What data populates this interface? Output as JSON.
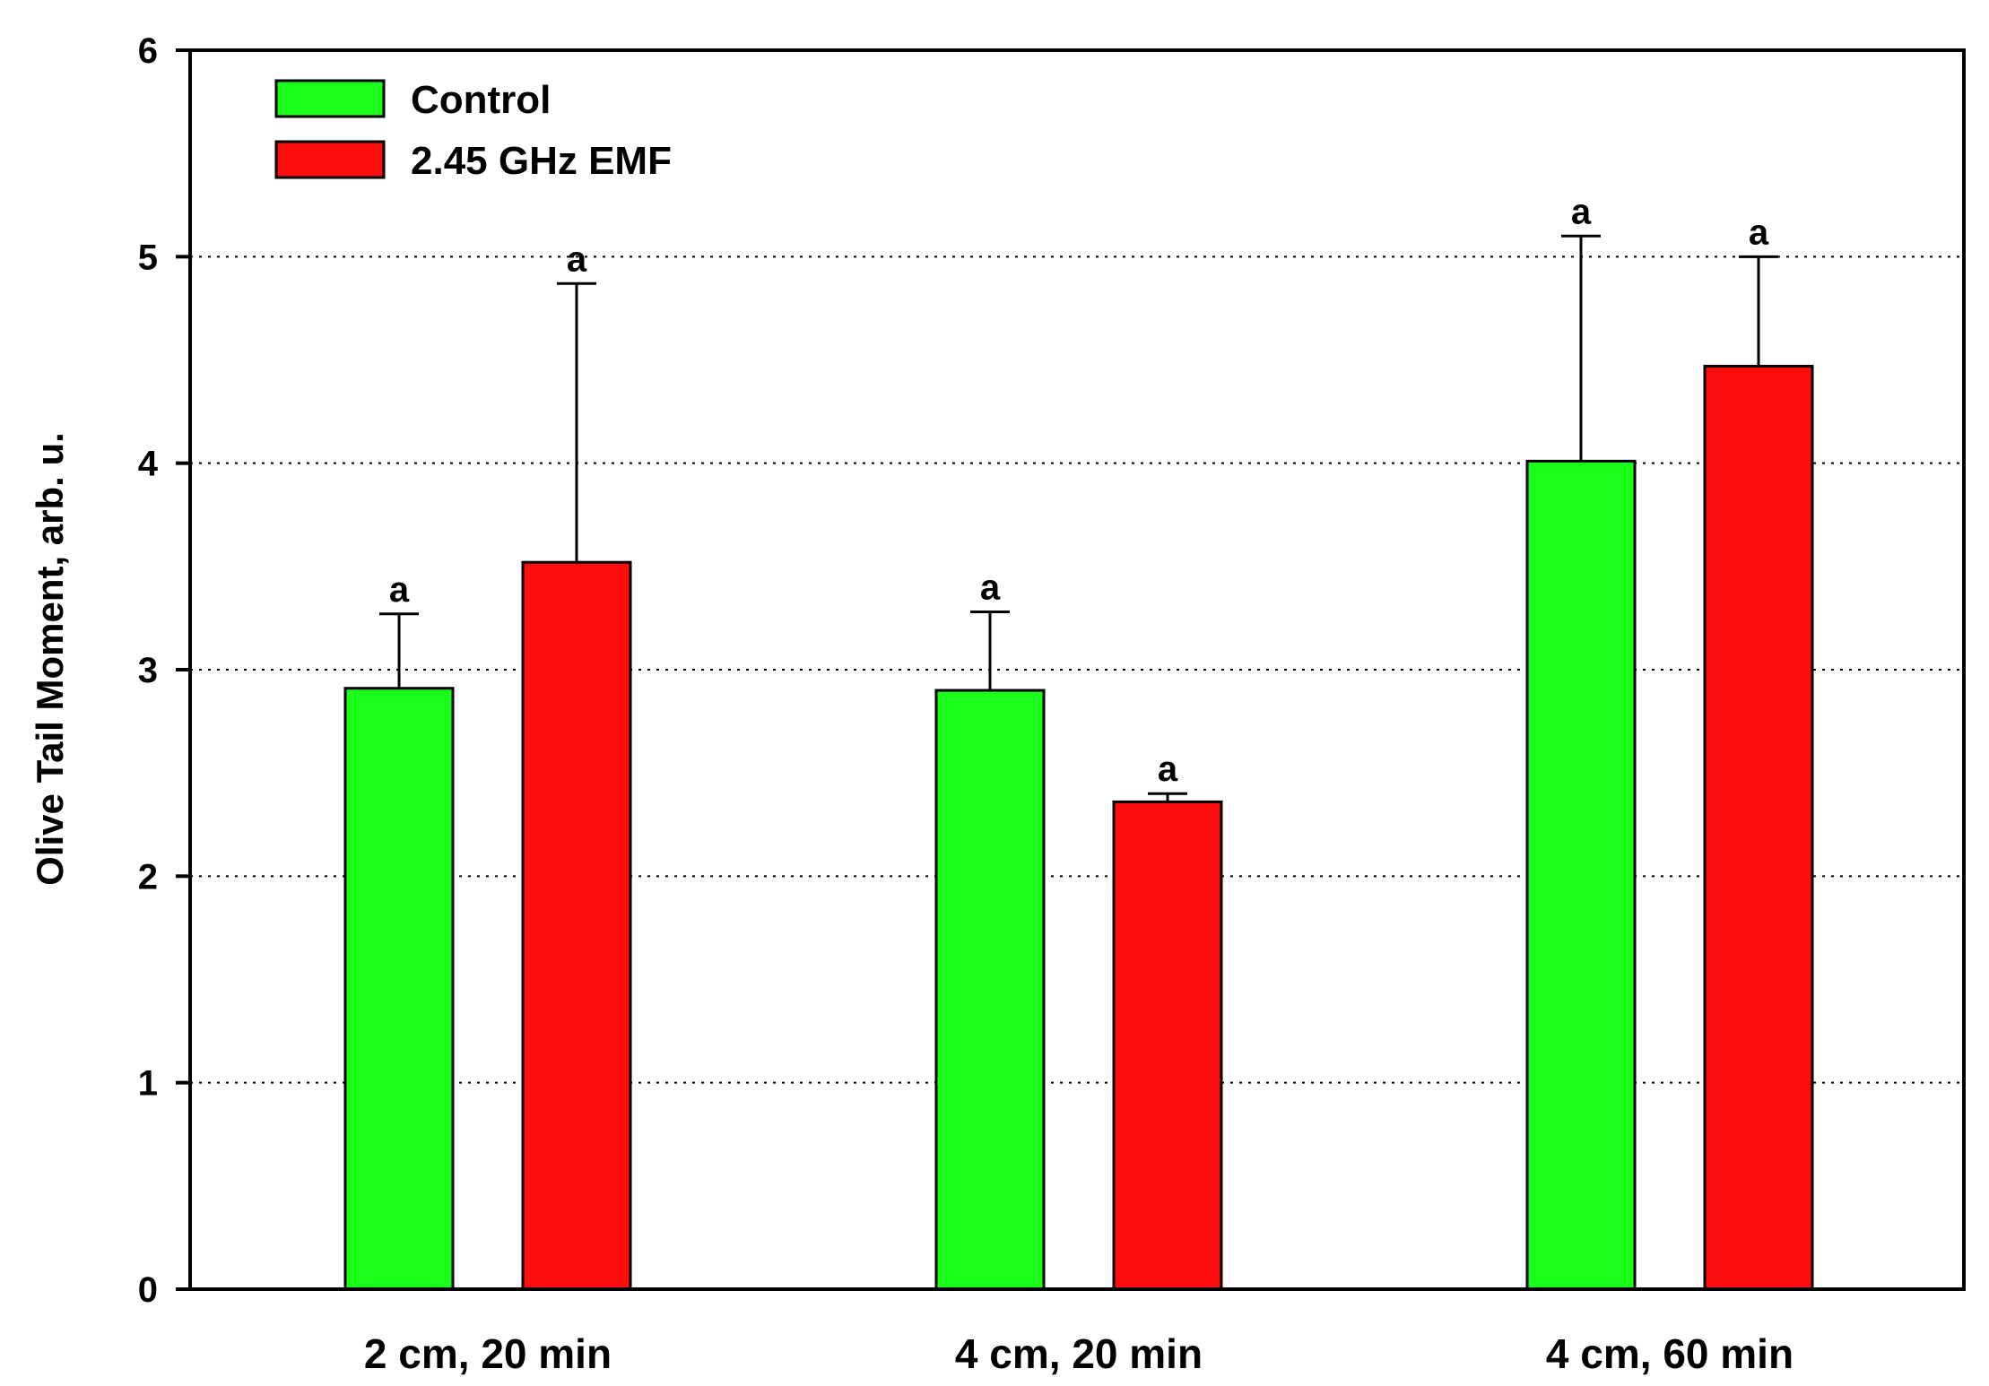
{
  "chart_data": {
    "type": "bar",
    "title": "",
    "xlabel": "",
    "ylabel": "Olive Tail Moment, arb. u.",
    "ylim": [
      0,
      6
    ],
    "yticks": [
      0,
      1,
      2,
      3,
      4,
      5,
      6
    ],
    "grid": "horizontal-dotted",
    "legend_position": "top-left",
    "categories": [
      "2 cm, 20 min",
      "4 cm, 20 min",
      "4 cm, 60 min"
    ],
    "series": [
      {
        "name": "Control",
        "color": "#1aff1a",
        "values": [
          2.91,
          2.9,
          4.01
        ],
        "error_upper": [
          0.36,
          0.38,
          1.09
        ],
        "significance": [
          "a",
          "a",
          "a"
        ]
      },
      {
        "name": "2.45 GHz EMF",
        "color": "#ff0d0d",
        "values": [
          3.52,
          2.36,
          4.47
        ],
        "error_upper": [
          1.35,
          0.04,
          0.53
        ],
        "significance": [
          "a",
          "a",
          "a"
        ]
      }
    ]
  }
}
